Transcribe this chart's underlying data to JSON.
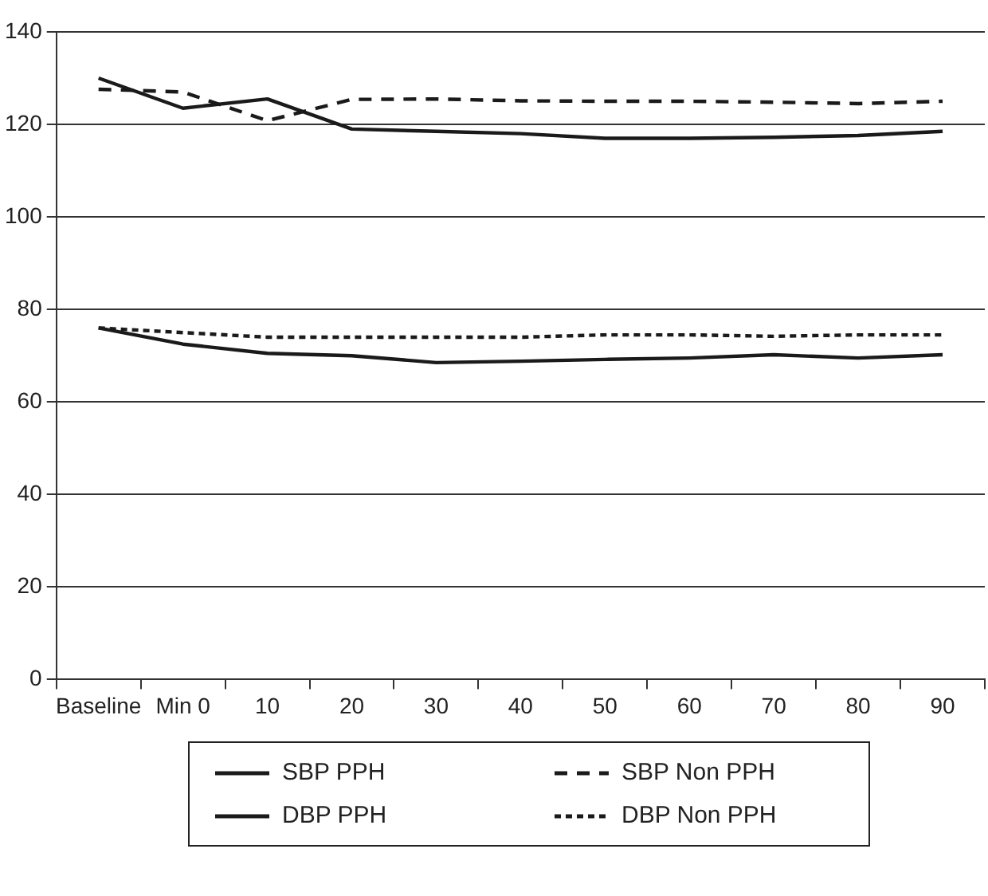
{
  "chart_data": {
    "type": "line",
    "categories": [
      "Baseline",
      "Min 0",
      "10",
      "20",
      "30",
      "40",
      "50",
      "60",
      "70",
      "80",
      "90"
    ],
    "series": [
      {
        "name": "SBP PPH",
        "color": "#1a1a1a",
        "line_style": "solid",
        "values": [
          130,
          123.5,
          125.5,
          119,
          118.5,
          118,
          117,
          117,
          117.2,
          117.6,
          118.5
        ]
      },
      {
        "name": "SBP Non PPH",
        "color": "#1a1a1a",
        "line_style": "dashed",
        "values": [
          127.6,
          127,
          120.8,
          125.4,
          125.5,
          125.1,
          125,
          125,
          124.8,
          124.5,
          125
        ]
      },
      {
        "name": "DBP PPH",
        "color": "#1a1a1a",
        "line_style": "solid",
        "values": [
          76,
          72.5,
          70.5,
          70,
          68.5,
          68.8,
          69.2,
          69.5,
          70.2,
          69.5,
          70.2
        ]
      },
      {
        "name": "DBP Non PPH",
        "color": "#1a1a1a",
        "line_style": "dotted",
        "values": [
          76,
          75,
          74,
          74,
          74,
          74,
          74.5,
          74.5,
          74.2,
          74.5,
          74.5
        ]
      }
    ],
    "ylim": [
      0,
      140
    ],
    "yticks": [
      0,
      20,
      40,
      60,
      80,
      100,
      120,
      140
    ],
    "grid": "y",
    "legend": "bottom",
    "marker": "none"
  }
}
